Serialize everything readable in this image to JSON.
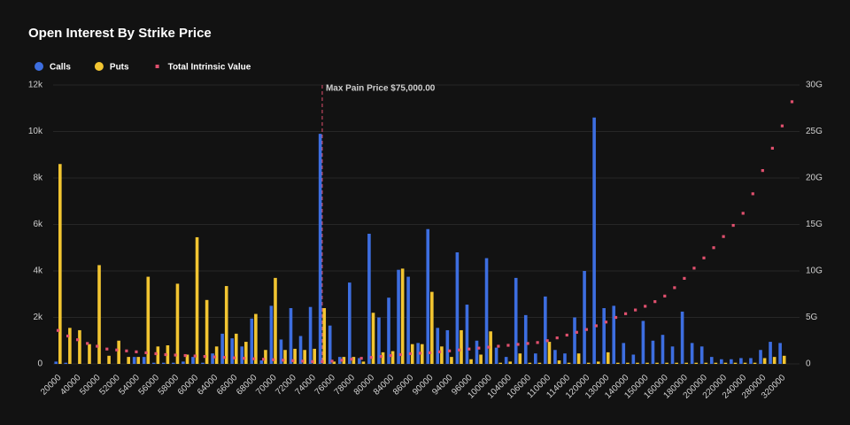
{
  "chart_data": {
    "type": "bar",
    "title": "Open Interest By Strike Price",
    "categories": [
      "20000",
      null,
      "40000",
      null,
      "50000",
      null,
      "52000",
      null,
      "54000",
      null,
      "56000",
      null,
      "58000",
      null,
      "60000",
      null,
      "64000",
      null,
      "66000",
      null,
      "68000",
      null,
      "70000",
      null,
      "72000",
      null,
      "74000",
      null,
      "76000",
      null,
      "78000",
      null,
      "80000",
      null,
      "84000",
      null,
      "86000",
      null,
      "90000",
      null,
      "94000",
      null,
      "96000",
      null,
      "100000",
      null,
      "104000",
      null,
      "106000",
      null,
      "110000",
      null,
      "114000",
      null,
      "120000",
      null,
      "130000",
      null,
      "140000",
      null,
      "150000",
      null,
      "160000",
      null,
      "180000",
      null,
      "200000",
      null,
      "220000",
      null,
      "240000",
      null,
      "280000",
      null,
      "320000",
      null
    ],
    "series": [
      {
        "name": "Calls",
        "color": "#3d6ee0",
        "values": [
          0.1,
          0.05,
          0,
          0,
          0,
          0,
          0,
          0,
          0.3,
          0.3,
          0.05,
          0.05,
          0.05,
          0.1,
          0.3,
          0.05,
          0.45,
          1.3,
          1.1,
          0.75,
          1.95,
          0.15,
          2.5,
          1.05,
          2.4,
          1.2,
          2.45,
          9.9,
          1.65,
          0.3,
          3.5,
          0.25,
          5.6,
          2.0,
          2.85,
          4.05,
          3.75,
          0.9,
          5.8,
          1.55,
          1.45,
          4.8,
          2.55,
          1.0,
          4.55,
          0.7,
          0.3,
          3.7,
          2.1,
          0.45,
          2.9,
          0.6,
          0.45,
          2.0,
          4.0,
          10.6,
          2.4,
          2.5,
          0.9,
          0.4,
          1.85,
          1.0,
          1.25,
          0.75,
          2.25,
          0.9,
          0.75,
          0.3,
          0.2,
          0.2,
          0.25,
          0.25,
          0.6,
          0.95,
          0.9,
          0
        ]
      },
      {
        "name": "Puts",
        "color": "#f2c531",
        "values": [
          8.6,
          1.55,
          1.45,
          0.85,
          4.25,
          0.35,
          1.0,
          0.3,
          0.3,
          3.75,
          0.75,
          0.8,
          3.45,
          0.4,
          5.45,
          2.75,
          0.75,
          3.35,
          1.3,
          0.95,
          2.15,
          0.6,
          3.7,
          0.6,
          0.65,
          0.6,
          0.65,
          2.4,
          0.1,
          0.3,
          0.3,
          0.1,
          2.2,
          0.5,
          0.55,
          4.1,
          0.85,
          0.85,
          3.1,
          0.75,
          0.3,
          1.45,
          0.2,
          0.4,
          1.4,
          0.05,
          0.1,
          0.45,
          0.05,
          0.05,
          0.95,
          0.15,
          0.05,
          0.45,
          0.05,
          0.1,
          0.5,
          0.05,
          0.05,
          0.05,
          0.05,
          0.05,
          0.05,
          0.05,
          0.05,
          0.05,
          0.05,
          0.05,
          0.05,
          0.05,
          0.05,
          0.05,
          0.25,
          0.3,
          0.35,
          0
        ]
      },
      {
        "name": "Total Intrinsic Value",
        "color": "#e0506e",
        "axis": "y2",
        "values": [
          3.6,
          3.0,
          2.6,
          2.2,
          1.9,
          1.6,
          1.5,
          1.4,
          1.3,
          1.2,
          1.1,
          1.0,
          0.95,
          0.9,
          0.85,
          0.8,
          0.75,
          0.7,
          0.65,
          0.6,
          0.55,
          0.5,
          0.45,
          0.4,
          0.35,
          0.3,
          0.25,
          0.25,
          0.3,
          0.4,
          0.5,
          0.6,
          0.7,
          0.8,
          0.9,
          1.0,
          1.1,
          1.15,
          1.2,
          1.3,
          1.4,
          1.5,
          1.6,
          1.7,
          1.8,
          1.9,
          2.0,
          2.1,
          2.2,
          2.3,
          2.5,
          2.8,
          3.1,
          3.4,
          3.7,
          4.1,
          4.5,
          5.0,
          5.4,
          5.8,
          6.2,
          6.7,
          7.3,
          8.2,
          9.2,
          10.3,
          11.4,
          12.5,
          13.7,
          14.9,
          16.2,
          18.3,
          20.8,
          23.2,
          25.6,
          28.2
        ]
      }
    ],
    "ylim": [
      0,
      12
    ],
    "yticks": [
      0,
      {
        "value": 2,
        "label": "2k"
      },
      {
        "value": 4,
        "label": "4k"
      },
      {
        "value": 6,
        "label": "6k"
      },
      {
        "value": 8,
        "label": "8k"
      },
      {
        "value": 10,
        "label": "10k"
      },
      {
        "value": 12,
        "label": "12k"
      }
    ],
    "y2lim": [
      0,
      30
    ],
    "y2ticks": [
      0,
      {
        "value": 5,
        "label": "5G"
      },
      {
        "value": 10,
        "label": "10G"
      },
      {
        "value": 15,
        "label": "15G"
      },
      {
        "value": 20,
        "label": "20G"
      },
      {
        "value": 25,
        "label": "25G"
      },
      {
        "value": 30,
        "label": "30G"
      }
    ],
    "grid": true,
    "annotation": "Max Pain Price $75,000.00"
  }
}
